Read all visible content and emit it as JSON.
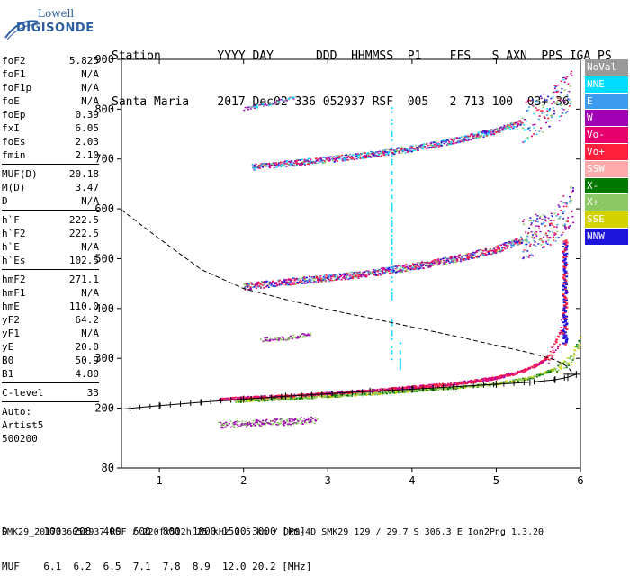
{
  "logo": {
    "line1": "Lowell",
    "line2": "DIGISONDE"
  },
  "header": {
    "labels": [
      "Station",
      "YYYY",
      "DAY",
      "DDD",
      "HHMMSS",
      "P1",
      "FFS",
      "S",
      "AXN",
      "PPS",
      "IGA",
      "PS"
    ],
    "values": [
      "Santa Maria",
      "2017",
      "Dec02",
      "336",
      "052937",
      "RSF",
      "005",
      "2",
      "713",
      "100",
      "03+",
      "36"
    ]
  },
  "params": [
    [
      {
        "k": "foF2",
        "v": "5.825"
      },
      {
        "k": "foF1",
        "v": "N/A"
      },
      {
        "k": "foF1p",
        "v": "N/A"
      },
      {
        "k": "foE",
        "v": "N/A"
      },
      {
        "k": "foEp",
        "v": "0.39"
      },
      {
        "k": "fxI",
        "v": "6.05"
      },
      {
        "k": "foEs",
        "v": "2.03"
      },
      {
        "k": "fmin",
        "v": "2.10"
      }
    ],
    [
      {
        "k": "MUF(D)",
        "v": "20.18"
      },
      {
        "k": "M(D)",
        "v": "3.47"
      },
      {
        "k": "D",
        "v": "N/A"
      }
    ],
    [
      {
        "k": "h`F",
        "v": "222.5"
      },
      {
        "k": "h`F2",
        "v": "222.5"
      },
      {
        "k": "h`E",
        "v": "N/A"
      },
      {
        "k": "h`Es",
        "v": "102.5"
      }
    ],
    [
      {
        "k": "hmF2",
        "v": "271.1"
      },
      {
        "k": "hmF1",
        "v": "N/A"
      },
      {
        "k": "hmE",
        "v": "110.0"
      },
      {
        "k": "yF2",
        "v": "64.2"
      },
      {
        "k": "yF1",
        "v": "N/A"
      },
      {
        "k": "yE",
        "v": "20.0"
      },
      {
        "k": "B0",
        "v": "50.9"
      },
      {
        "k": "B1",
        "v": "4.80"
      }
    ],
    [
      {
        "k": "C-level",
        "v": "33"
      }
    ]
  ],
  "auto": [
    "Auto:",
    "Artist5",
    "500200"
  ],
  "legend": [
    {
      "label": "NoVal",
      "color": "#9a9a9a"
    },
    {
      "label": "NNE",
      "color": "#00dcff"
    },
    {
      "label": "E",
      "color": "#3c9bef"
    },
    {
      "label": "W",
      "color": "#a000b4"
    },
    {
      "label": "Vo-",
      "color": "#e6006e"
    },
    {
      "label": "Vo+",
      "color": "#ff1e3c"
    },
    {
      "label": "SSW",
      "color": "#ffaaaa"
    },
    {
      "label": "X-",
      "color": "#007800"
    },
    {
      "label": "X+",
      "color": "#8cc864"
    },
    {
      "label": "SSE",
      "color": "#d2d200"
    },
    {
      "label": "NNW",
      "color": "#1e14dc"
    }
  ],
  "muf_table": {
    "d_label": "D",
    "d_values": [
      "100",
      "200",
      "400",
      "600",
      "800",
      "1000",
      "1500",
      "3000"
    ],
    "d_unit": "[km]",
    "muf_label": "MUF",
    "muf_values": [
      "6.1",
      "6.2",
      "6.5",
      "7.1",
      "7.8",
      "8.9",
      "12.0",
      "20.2"
    ],
    "muf_unit": "[MHz]"
  },
  "footer": "SMK29_2017336052937.RSF / 220fx512h 25 kHz 2.5 km / DPS-4D SMK29 129 / 29.7 S 306.3 E Ion2Png 1.3.20",
  "chart_data": {
    "type": "scatter",
    "xlim": [
      0.55,
      6.0
    ],
    "ylim": [
      80,
      900
    ],
    "x_ticks": [
      1,
      2,
      3,
      4,
      5,
      6
    ],
    "y_ticks": [
      80,
      200,
      300,
      400,
      500,
      600,
      700,
      800,
      900
    ],
    "grid": false,
    "legend_position": "right",
    "traces": {
      "o_trace": {
        "x": [
          1.7,
          2.0,
          2.5,
          3.0,
          3.5,
          4.0,
          4.5,
          5.0,
          5.3,
          5.5,
          5.65,
          5.75,
          5.82
        ],
        "y": [
          218,
          222,
          225,
          230,
          236,
          243,
          250,
          262,
          275,
          290,
          310,
          345,
          420
        ]
      },
      "x_trace": {
        "x": [
          1.9,
          2.5,
          3.0,
          3.5,
          4.0,
          4.5,
          5.0,
          5.4,
          5.7,
          5.9,
          6.0
        ],
        "y": [
          215,
          220,
          225,
          230,
          236,
          242,
          250,
          262,
          280,
          300,
          345
        ]
      },
      "second_hop": {
        "x": [
          2.0,
          2.5,
          3.0,
          3.5,
          4.0,
          4.5,
          5.0,
          5.4,
          5.7,
          5.9
        ],
        "y": [
          445,
          455,
          462,
          472,
          485,
          500,
          520,
          545,
          575,
          610
        ]
      },
      "third_hop": {
        "x": [
          2.1,
          2.5,
          3.0,
          3.5,
          4.0,
          4.5,
          5.0,
          5.4,
          5.7,
          5.9
        ],
        "y": [
          685,
          692,
          700,
          710,
          722,
          738,
          758,
          780,
          810,
          845
        ]
      },
      "es_trace": {
        "x": [
          1.7,
          2.0,
          2.3,
          2.6,
          2.9
        ],
        "y": [
          167,
          170,
          172,
          175,
          178
        ]
      },
      "es_second": {
        "x": [
          2.2,
          2.5,
          2.8
        ],
        "y": [
          338,
          342,
          350
        ]
      },
      "upper_patch": {
        "x": [
          2.0,
          2.3,
          2.6
        ],
        "y": [
          802,
          812,
          825
        ]
      },
      "profile_solid": {
        "x": [
          0.55,
          1.0,
          1.5,
          2.0,
          2.5,
          3.0,
          3.5,
          4.0,
          4.5,
          5.0,
          5.4,
          5.7,
          5.85,
          5.95
        ],
        "y": [
          198,
          205,
          212,
          218,
          224,
          229,
          234,
          238,
          243,
          248,
          252,
          257,
          262,
          268
        ]
      },
      "profile_dashed": {
        "x": [
          0.55,
          1.0,
          1.5,
          2.0,
          2.5,
          3.0,
          3.5,
          4.0,
          4.5,
          5.0,
          5.4,
          5.7,
          5.85,
          5.9
        ],
        "y": [
          598,
          540,
          478,
          440,
          418,
          398,
          381,
          363,
          345,
          326,
          311,
          297,
          283,
          271
        ]
      },
      "profile_upper": {
        "x": [
          5.8,
          6.0
        ],
        "y": [
          268,
          268
        ]
      },
      "vertical_artifacts": [
        {
          "x": 3.75,
          "y0": 300,
          "y1": 820
        },
        {
          "x": 3.85,
          "y0": 280,
          "y1": 340
        }
      ],
      "vertical_spike": {
        "x": 5.8,
        "y0": 330,
        "y1": 540
      }
    }
  }
}
